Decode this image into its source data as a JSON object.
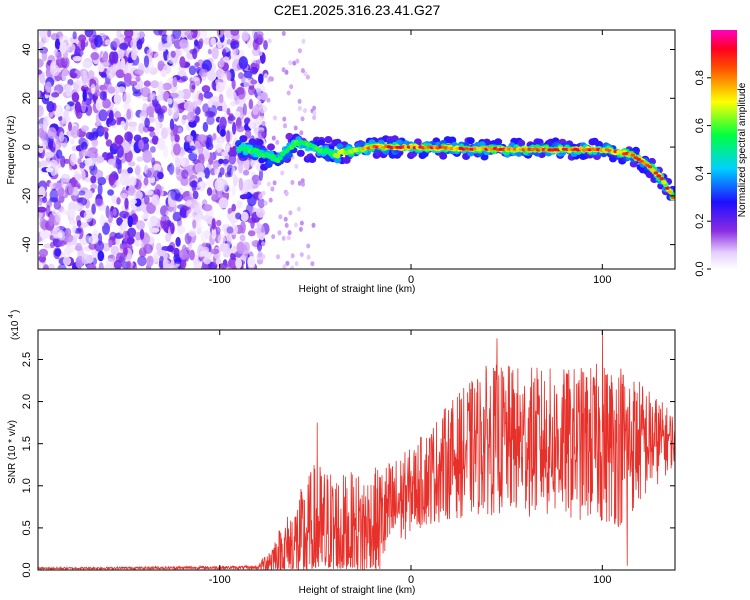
{
  "title": "C2E1.2025.316.23.41.G27",
  "colors": {
    "snr_line": "#e8302a",
    "axis": "#000000",
    "background": "#ffffff"
  },
  "chart_data": [
    {
      "type": "heatmap",
      "name": "spectrogram",
      "xlabel": "Height of straight line (km)",
      "ylabel": "Frequency (Hz)",
      "xlim": [
        -195,
        138
      ],
      "ylim": [
        -50,
        48
      ],
      "xticks": [
        -100,
        0,
        100
      ],
      "xtick_labels": [
        "-100",
        "0",
        "100"
      ],
      "yticks": [
        -40,
        -20,
        0,
        20,
        40
      ],
      "ytick_labels": [
        "-40",
        "-20",
        "0",
        "20",
        "40"
      ],
      "colorbar": {
        "label": "Normalized spectral amplitude",
        "range": [
          0,
          1
        ],
        "ticks": [
          0,
          0.2,
          0.4,
          0.6,
          0.8
        ],
        "tick_labels": [
          "0.0",
          "0.2",
          "0.4",
          "0.6",
          "0.8"
        ],
        "colormap": "rainbow (white-purple-blue-cyan-green-yellow-red-magenta)"
      },
      "features": {
        "noise_region_x": [
          -195,
          -80
        ],
        "signal_track": [
          {
            "x": -90,
            "f": 0
          },
          {
            "x": -70,
            "f": -5
          },
          {
            "x": -60,
            "f": 2
          },
          {
            "x": -40,
            "f": -3
          },
          {
            "x": -20,
            "f": 0
          },
          {
            "x": 0,
            "f": 0
          },
          {
            "x": 50,
            "f": -1
          },
          {
            "x": 100,
            "f": -1
          },
          {
            "x": 115,
            "f": -3
          },
          {
            "x": 125,
            "f": -8
          },
          {
            "x": 132,
            "f": -14
          },
          {
            "x": 138,
            "f": -22
          }
        ]
      }
    },
    {
      "type": "line",
      "name": "snr",
      "xlabel": "Height of straight line (km)",
      "ylabel": "SNR (10 * v/v)",
      "y_scale_label": "(x10",
      "y_scale_exponent": "4",
      "xlim": [
        -195,
        138
      ],
      "ylim": [
        0,
        2.85
      ],
      "xticks": [
        -100,
        0,
        100
      ],
      "xtick_labels": [
        "-100",
        "0",
        "100"
      ],
      "yticks": [
        0,
        0.5,
        1,
        1.5,
        2,
        2.5
      ],
      "ytick_labels": [
        "0.0",
        "0.5",
        "1.0",
        "1.5",
        "2.0",
        "2.5"
      ],
      "series": [
        {
          "name": "SNR",
          "envelope": [
            {
              "x": -195,
              "mean": 0.02,
              "amp": 0.01
            },
            {
              "x": -80,
              "mean": 0.03,
              "amp": 0.02
            },
            {
              "x": -65,
              "mean": 0.25,
              "amp": 0.4
            },
            {
              "x": -50,
              "mean": 0.4,
              "amp": 0.9
            },
            {
              "x": -35,
              "mean": 0.45,
              "amp": 0.7
            },
            {
              "x": -20,
              "mean": 0.5,
              "amp": 0.7
            },
            {
              "x": 0,
              "mean": 0.95,
              "amp": 0.5
            },
            {
              "x": 20,
              "mean": 1.3,
              "amp": 0.7
            },
            {
              "x": 40,
              "mean": 1.55,
              "amp": 0.9
            },
            {
              "x": 80,
              "mean": 1.5,
              "amp": 0.9
            },
            {
              "x": 110,
              "mean": 1.5,
              "amp": 1.0
            },
            {
              "x": 138,
              "mean": 1.55,
              "amp": 0.3
            }
          ],
          "peaks": [
            {
              "x": -49,
              "y": 1.75
            },
            {
              "x": 45,
              "y": 2.75
            },
            {
              "x": 100,
              "y": 2.85
            },
            {
              "x": 113,
              "y": 0.05
            }
          ]
        }
      ]
    }
  ]
}
